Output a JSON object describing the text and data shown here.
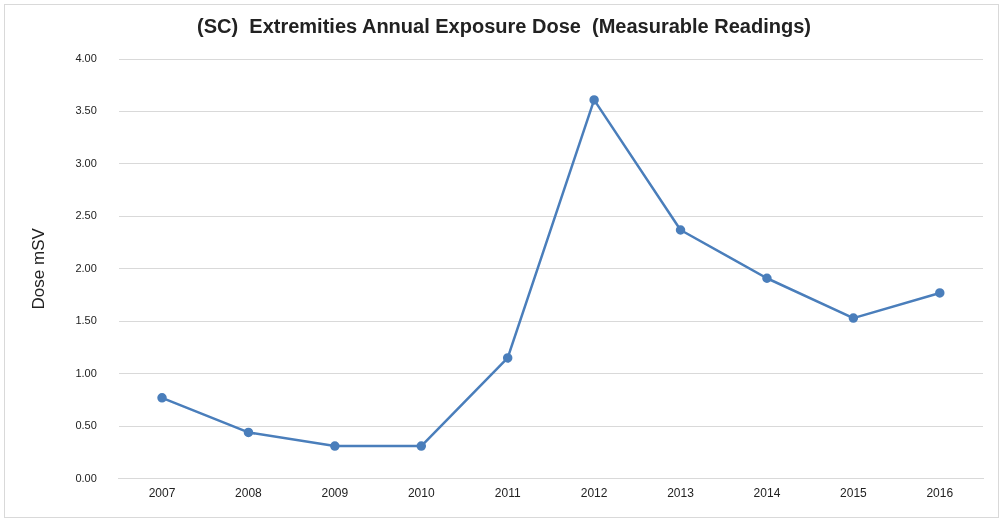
{
  "chart_data": {
    "type": "line",
    "title": "(SC)  Extremities Annual Exposure Dose  (Measurable Readings)",
    "ylabel": "Dose mSV",
    "categories": [
      "2007",
      "2008",
      "2009",
      "2010",
      "2011",
      "2012",
      "2013",
      "2014",
      "2015",
      "2016"
    ],
    "series": [
      {
        "color": "#4a7ebb",
        "values": [
          0.77,
          0.44,
          0.31,
          0.31,
          1.15,
          3.61,
          2.37,
          1.91,
          1.53,
          1.77
        ]
      }
    ],
    "ylim": [
      0,
      4
    ],
    "yticks": [
      {
        "value": 0,
        "label": "0.00"
      },
      {
        "value": 0.5,
        "label": "0.50"
      },
      {
        "value": 1,
        "label": "1.00"
      },
      {
        "value": 1.5,
        "label": "1.50"
      },
      {
        "value": 2,
        "label": "2.00"
      },
      {
        "value": 2.5,
        "label": "2.50"
      },
      {
        "value": 3,
        "label": "3.00"
      },
      {
        "value": 3.5,
        "label": "3.50"
      },
      {
        "value": 4,
        "label": "4.00"
      }
    ],
    "grid": "y",
    "legend": false,
    "marker": "circle",
    "line_style": "solid"
  }
}
